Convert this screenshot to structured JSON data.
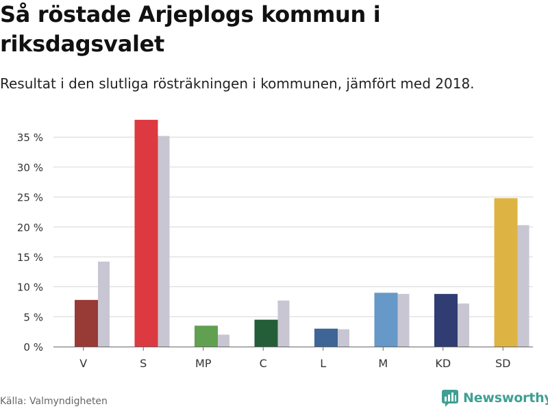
{
  "header": {
    "title": "Så röstade Arjeplogs kommun i riksdagsvalet",
    "subtitle": "Resultat i den slutliga rösträkningen i kommunen, jämfört med 2018."
  },
  "footer": {
    "source": "Källa: Valmyndigheten",
    "brand": "Newsworthy",
    "brand_icon": "newsworthy-chart-logo-icon",
    "brand_color": "#3f9f93"
  },
  "chart_data": {
    "type": "bar",
    "categories": [
      "V",
      "S",
      "MP",
      "C",
      "L",
      "M",
      "KD",
      "SD"
    ],
    "series": [
      {
        "values": [
          7.8,
          37.9,
          3.5,
          4.5,
          3.0,
          9.0,
          8.8,
          24.8
        ],
        "colors": [
          "#983a36",
          "#dc3a40",
          "#61a050",
          "#235e39",
          "#3f6597",
          "#6698c8",
          "#303d72",
          "#ddb443"
        ]
      },
      {
        "values": [
          14.2,
          35.2,
          2.0,
          7.7,
          2.9,
          8.8,
          7.2,
          20.3
        ],
        "color": "#c8c6d2"
      }
    ],
    "yticks": [
      0,
      5,
      10,
      15,
      20,
      25,
      30,
      35
    ],
    "ytick_suffix": " %",
    "ylim": [
      0,
      38
    ],
    "grid": true,
    "grid_color": "#d6d6d6",
    "axis_color": "#666666"
  }
}
